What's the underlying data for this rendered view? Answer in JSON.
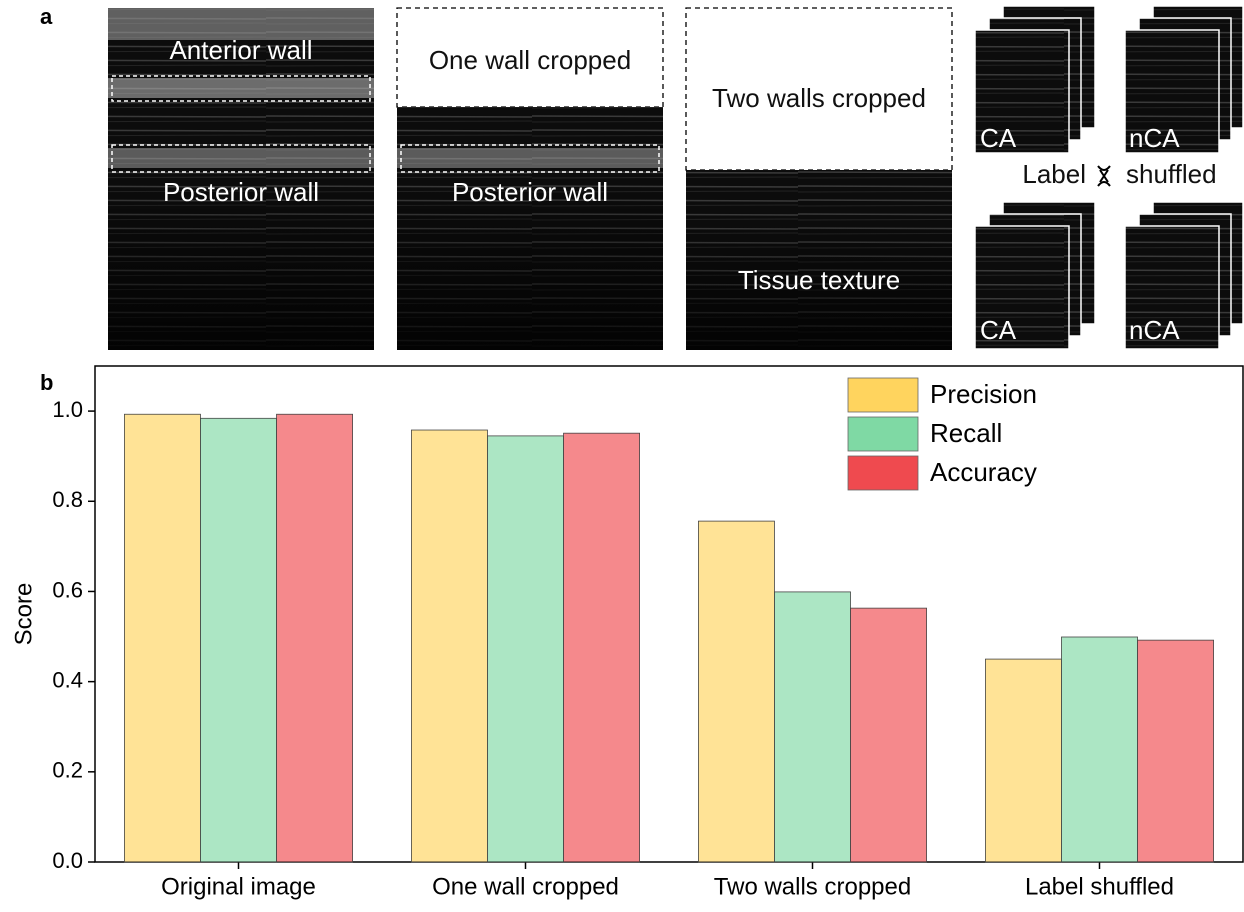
{
  "panel_labels": [
    "a",
    "b"
  ],
  "panel_a": {
    "labels": [
      "Anterior wall",
      "Posterior wall",
      "One wall cropped",
      "Posterior wall",
      "Two walls cropped",
      "Tissue texture",
      "CA",
      "nCA",
      "Label",
      "shuffled",
      "CA",
      "nCA"
    ]
  },
  "chart_data": {
    "type": "bar",
    "categories": [
      "Original image",
      "One wall cropped",
      "Two walls cropped",
      "Label shuffled"
    ],
    "series": [
      {
        "name": "Precision",
        "color": "#ffd45e",
        "values": [
          0.993,
          0.958,
          0.756,
          0.45
        ]
      },
      {
        "name": "Recall",
        "color": "#7fd9a4",
        "values": [
          0.984,
          0.945,
          0.599,
          0.499
        ]
      },
      {
        "name": "Accuracy",
        "color": "#ef4a4f",
        "values": [
          0.993,
          0.951,
          0.563,
          0.492
        ]
      }
    ],
    "y_label": "Score",
    "ylim": [
      0,
      1.1
    ],
    "yticks": [
      {
        "value": 0,
        "label": "0.0"
      },
      0.2,
      0.4,
      0.6,
      0.8,
      {
        "value": 1,
        "label": "1.0"
      }
    ],
    "legend": "upper right"
  }
}
